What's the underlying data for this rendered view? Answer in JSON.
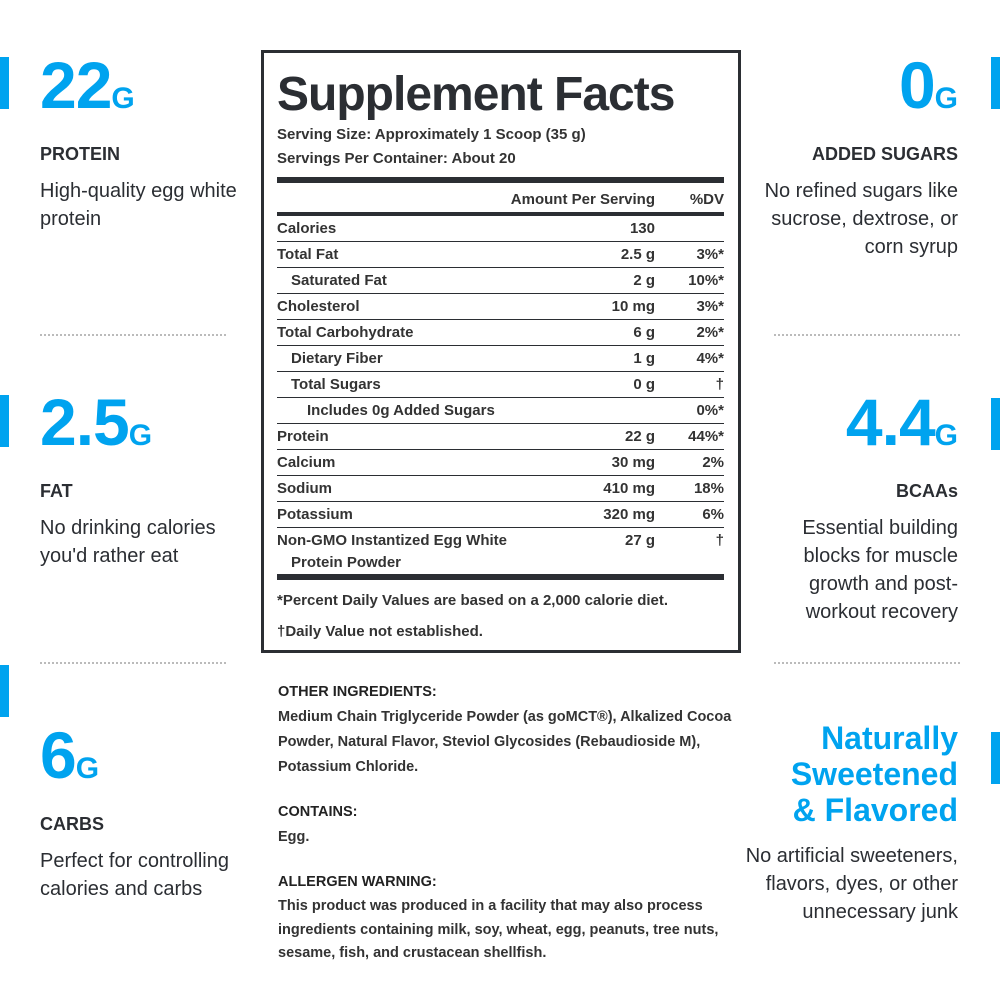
{
  "accent": "#00a3ef",
  "left": [
    {
      "num": "22",
      "unit": "G",
      "label": "PROTEIN",
      "desc": "High-quality egg white protein"
    },
    {
      "num": "2.5",
      "unit": "G",
      "label": "FAT",
      "desc": "No drinking calories you'd rather eat"
    },
    {
      "num": "6",
      "unit": "G",
      "label": "CARBS",
      "desc": "Perfect for controlling calories and carbs"
    }
  ],
  "right": [
    {
      "num": "0",
      "unit": "G",
      "label": "ADDED SUGARS",
      "desc": "No refined sugars like sucrose, dextrose, or corn syrup"
    },
    {
      "num": "4.4",
      "unit": "G",
      "label": "BCAAs",
      "desc": "Essential building blocks for muscle growth and post-workout recovery"
    },
    {
      "l1": "Naturally",
      "l2": "Sweetened",
      "l3": "& Flavored",
      "desc": "No artificial sweeteners, flavors, dyes, or other unnecessary junk"
    }
  ],
  "facts": {
    "title": "Supplement Facts",
    "serving_size": "Serving Size: Approximately 1 Scoop (35 g)",
    "servings": "Servings Per Container: About 20",
    "col_amount": "Amount Per Serving",
    "col_dv": "%DV",
    "rows": [
      {
        "name": "Calories",
        "amount": "130",
        "dv": ""
      },
      {
        "name": "Total Fat",
        "amount": "2.5 g",
        "dv": "3%*"
      },
      {
        "name": "Saturated Fat",
        "amount": "2 g",
        "dv": "10%*"
      },
      {
        "name": "Cholesterol",
        "amount": "10 mg",
        "dv": "3%*"
      },
      {
        "name": "Total Carbohydrate",
        "amount": "6 g",
        "dv": "2%*"
      },
      {
        "name": "Dietary Fiber",
        "amount": "1 g",
        "dv": "4%*"
      },
      {
        "name": "Total Sugars",
        "amount": "0 g",
        "dv": "†"
      },
      {
        "name": "Includes 0g Added Sugars",
        "amount": "",
        "dv": "0%*"
      },
      {
        "name": "Protein",
        "amount": "22 g",
        "dv": "44%*"
      },
      {
        "name": "Calcium",
        "amount": "30 mg",
        "dv": "2%"
      },
      {
        "name": "Sodium",
        "amount": "410 mg",
        "dv": "18%"
      },
      {
        "name": "Potassium",
        "amount": "320 mg",
        "dv": "6%"
      },
      {
        "name": "Non-GMO Instantized Egg White",
        "name2": "Protein Powder",
        "amount": "27 g",
        "dv": "†"
      }
    ],
    "foot1": "*Percent Daily Values are based on a 2,000 calorie diet.",
    "foot2": "†Daily Value not established."
  },
  "ingredients": {
    "other_h": "OTHER INGREDIENTS:",
    "other": "Medium Chain Triglyceride Powder (as goMCT®), Alkalized Cocoa Powder, Natural Flavor, Steviol Glycosides (Rebaudioside M), Potassium Chloride.",
    "contains_h": "CONTAINS:",
    "contains": "Egg.",
    "allergen_h": "ALLERGEN WARNING:",
    "allergen": "This product was produced in a facility that may also process ingredients containing milk, soy, wheat, egg, peanuts, tree nuts, sesame, fish, and crustacean shellfish."
  }
}
